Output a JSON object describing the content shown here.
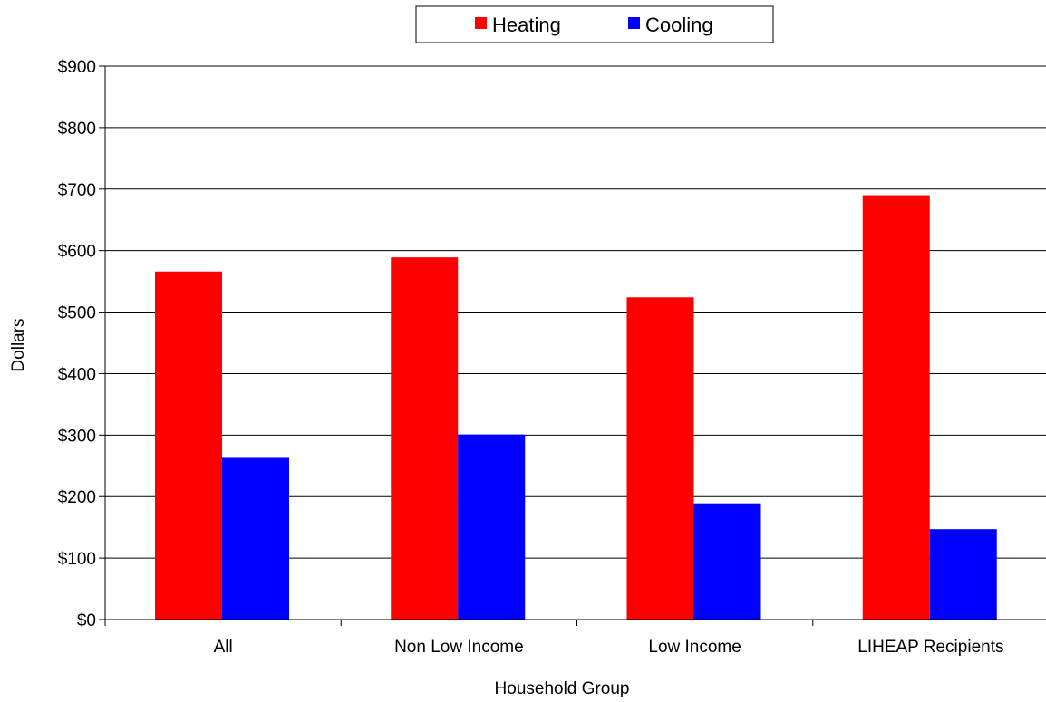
{
  "chart_data": {
    "type": "bar",
    "categories": [
      "All",
      "Non  Low Income",
      "Low Income",
      "LIHEAP Recipients"
    ],
    "series": [
      {
        "name": "Heating",
        "color": "#ff0000",
        "values": [
          566,
          589,
          524,
          690
        ]
      },
      {
        "name": "Cooling",
        "color": "#0000ff",
        "values": [
          263,
          301,
          189,
          147
        ]
      }
    ],
    "xlabel": "Household Group",
    "ylabel": "Dollars",
    "ylim": [
      0,
      900
    ],
    "yticks": [
      0,
      100,
      200,
      300,
      400,
      500,
      600,
      700,
      800,
      900
    ],
    "ytick_format": "$",
    "grid": true,
    "legend_position": "top-center"
  }
}
